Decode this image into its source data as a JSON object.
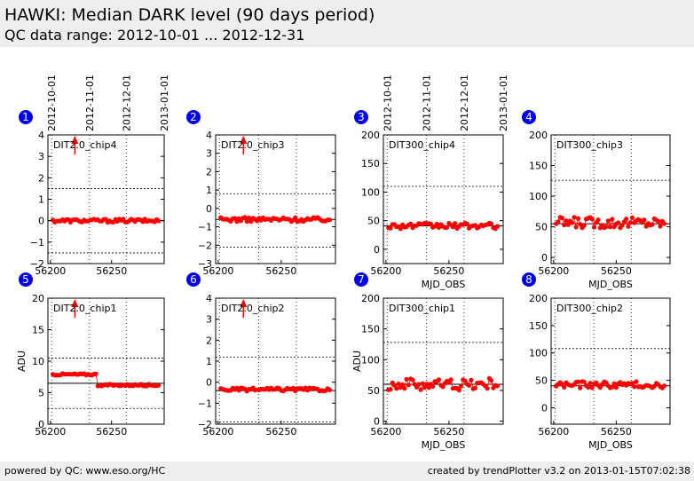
{
  "header": {
    "title": "HAWKI: Median DARK level (90 days period)",
    "subtitle": "QC data range: 2012-10-01 ... 2012-12-31"
  },
  "footer": {
    "left": "powered by QC: www.eso.org/HC",
    "right": "created by trendPlotter v3.2 on 2013-01-15T07:02:38"
  },
  "colors": {
    "marker": "#ff0000",
    "badge": "#0000ee",
    "line": "#000000",
    "header_bg": "#eeeeee"
  },
  "date_axis_labels": [
    "2012-10-01",
    "2012-11-01",
    "2012-12-01",
    "2013-01-01"
  ],
  "chart_data": [
    {
      "id": 1,
      "type": "scatter",
      "title": "DIT2.0_chip4",
      "xlim": [
        56198,
        56293
      ],
      "ylim": [
        -2,
        4
      ],
      "yticks": [
        -2,
        -1,
        0,
        1,
        2,
        3,
        4
      ],
      "ytick_labels": [
        "−2",
        "−1",
        "0",
        "1",
        "2",
        "3",
        "4"
      ],
      "xticks": [
        56200,
        56250
      ],
      "xtick_labels": [
        "56200",
        "56250"
      ],
      "ref": 0.0,
      "dotted": [
        1.5,
        -1.5
      ],
      "base": 0.0,
      "noise": 0.08,
      "arrow_x": 56220,
      "xlabel": "",
      "ylabel": "",
      "top_dates": true
    },
    {
      "id": 2,
      "type": "scatter",
      "title": "DIT2.0_chip3",
      "xlim": [
        56198,
        56293
      ],
      "ylim": [
        -3,
        4
      ],
      "yticks": [
        -3,
        -2,
        -1,
        0,
        1,
        2,
        3,
        4
      ],
      "ytick_labels": [
        "−3",
        "−2",
        "−1",
        "0",
        "1",
        "2",
        "3",
        "4"
      ],
      "xticks": [
        56200,
        56250
      ],
      "xtick_labels": [
        "56200",
        "56250"
      ],
      "ref": -0.6,
      "dotted": [
        0.8,
        -2.1
      ],
      "base": -0.6,
      "noise": 0.12,
      "arrow_x": 56220,
      "xlabel": "",
      "ylabel": "",
      "top_dates": false
    },
    {
      "id": 3,
      "type": "scatter",
      "title": "DIT300_chip4",
      "xlim": [
        56198,
        56293
      ],
      "ylim": [
        -25,
        200
      ],
      "yticks": [
        0,
        50,
        100,
        150,
        200
      ],
      "ytick_labels": [
        "0",
        "50",
        "100",
        "150",
        "200"
      ],
      "xticks": [
        56200,
        56250
      ],
      "xtick_labels": [
        "56200",
        "56250"
      ],
      "ref": 41,
      "dotted": [
        110,
        -25
      ],
      "base": 41,
      "noise": 5,
      "arrow_x": null,
      "xlabel": "MJD_OBS",
      "ylabel": "",
      "top_dates": true
    },
    {
      "id": 4,
      "type": "scatter",
      "title": "DIT300_chip3",
      "xlim": [
        56198,
        56293
      ],
      "ylim": [
        -10,
        200
      ],
      "yticks": [
        0,
        50,
        100,
        150,
        200
      ],
      "ytick_labels": [
        "0",
        "50",
        "100",
        "150",
        "200"
      ],
      "xticks": [
        56200,
        56250
      ],
      "xtick_labels": [
        "56200",
        "56250"
      ],
      "ref": 55,
      "dotted": [
        126,
        -10
      ],
      "base": 57,
      "noise": 9,
      "arrow_x": null,
      "xlabel": "MJD_OBS",
      "ylabel": "",
      "top_dates": false
    },
    {
      "id": 5,
      "type": "scatter",
      "title": "DIT2.0_chip1",
      "xlim": [
        56198,
        56293
      ],
      "ylim": [
        0,
        20
      ],
      "yticks": [
        0,
        5,
        10,
        15,
        20
      ],
      "ytick_labels": [
        "0",
        "5",
        "10",
        "15",
        "20"
      ],
      "xticks": [
        56200,
        56250
      ],
      "xtick_labels": [
        "56200",
        "56250"
      ],
      "ref": 6.5,
      "dotted": [
        10.5,
        2.5
      ],
      "base": 7.9,
      "base2": 6.2,
      "split_x": 56238,
      "noise": 0.15,
      "arrow_x": 56220,
      "xlabel": "",
      "ylabel": "ADU",
      "top_dates": false
    },
    {
      "id": 6,
      "type": "scatter",
      "title": "DIT2.0_chip2",
      "xlim": [
        56198,
        56293
      ],
      "ylim": [
        -2,
        4
      ],
      "yticks": [
        -2,
        -1,
        0,
        1,
        2,
        3,
        4
      ],
      "ytick_labels": [
        "−2",
        "−1",
        "0",
        "1",
        "2",
        "3",
        "4"
      ],
      "xticks": [
        56200,
        56250
      ],
      "xtick_labels": [
        "56200",
        "56250"
      ],
      "ref": -0.4,
      "dotted": [
        1.2,
        -1.9
      ],
      "base": -0.35,
      "noise": 0.08,
      "arrow_x": 56220,
      "xlabel": "",
      "ylabel": "",
      "top_dates": false
    },
    {
      "id": 7,
      "type": "scatter",
      "title": "DIT300_chip1",
      "xlim": [
        56198,
        56293
      ],
      "ylim": [
        -5,
        200
      ],
      "yticks": [
        0,
        50,
        100,
        150,
        200
      ],
      "ytick_labels": [
        "0",
        "50",
        "100",
        "150",
        "200"
      ],
      "xticks": [
        56200,
        56250
      ],
      "xtick_labels": [
        "56200",
        "56250"
      ],
      "ref": 60,
      "dotted": [
        128,
        -5
      ],
      "base": 60,
      "noise": 10,
      "arrow_x": null,
      "xlabel": "MJD_OBS",
      "ylabel": "ADU",
      "top_dates": false
    },
    {
      "id": 8,
      "type": "scatter",
      "title": "DIT300_chip2",
      "xlim": [
        56198,
        56293
      ],
      "ylim": [
        -30,
        200
      ],
      "yticks": [
        0,
        50,
        100,
        150,
        200
      ],
      "ytick_labels": [
        "0",
        "50",
        "100",
        "150",
        "200"
      ],
      "xticks": [
        56200,
        56250
      ],
      "xtick_labels": [
        "56200",
        "56250"
      ],
      "ref": 40,
      "dotted": [
        108,
        -30
      ],
      "base": 42,
      "noise": 6,
      "arrow_x": null,
      "xlabel": "MJD_OBS",
      "ylabel": "",
      "top_dates": false
    }
  ]
}
